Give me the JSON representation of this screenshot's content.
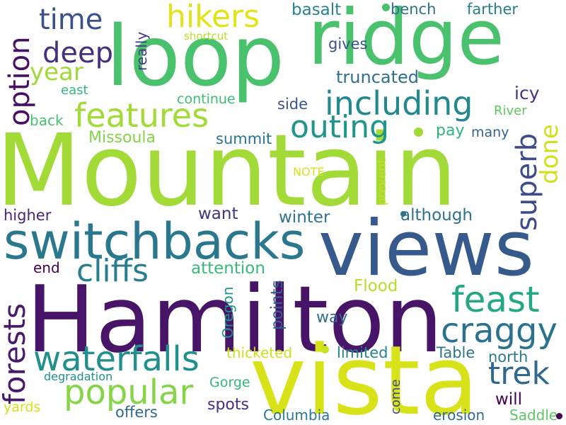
{
  "words": [
    {
      "text": "Mountain",
      "color": "#a2da37",
      "rot": 0
    },
    {
      "text": "Hamilton",
      "color": "#481467",
      "rot": 0
    },
    {
      "text": "vista",
      "color": "#d8e219",
      "rot": 0
    },
    {
      "text": "views",
      "color": "#375a8c",
      "rot": 0
    },
    {
      "text": "loop",
      "color": "#4ac16d",
      "rot": 0
    },
    {
      "text": "ridge",
      "color": "#4ac16d",
      "rot": 0
    },
    {
      "text": "switchbacks",
      "color": "#2a788e",
      "rot": 0
    },
    {
      "text": "hikers",
      "color": "#e2e418",
      "rot": 0
    },
    {
      "text": "features",
      "color": "#a2da37",
      "rot": 0
    },
    {
      "text": "including",
      "color": "#23898e",
      "rot": 0
    },
    {
      "text": "feast",
      "color": "#22a884",
      "rot": 0
    },
    {
      "text": "craggy",
      "color": "#2c728e",
      "rot": 0
    },
    {
      "text": "waterfalls",
      "color": "#21908d",
      "rot": 0
    },
    {
      "text": "forests",
      "color": "#481a6c",
      "rot": -90
    },
    {
      "text": "popular",
      "color": "#86d549",
      "rot": 0
    },
    {
      "text": "cliffs",
      "color": "#287d8e",
      "rot": 0
    },
    {
      "text": "outing",
      "color": "#1f958b",
      "rot": 0
    },
    {
      "text": "trek",
      "color": "#31688e",
      "rot": 0
    },
    {
      "text": "superb",
      "color": "#3e4c8a",
      "rot": -90
    },
    {
      "text": "time",
      "color": "#3b518b",
      "rot": 0
    },
    {
      "text": "deep",
      "color": "#46307e",
      "rot": 0
    },
    {
      "text": "year",
      "color": "#a0da39",
      "rot": 0
    },
    {
      "text": "option",
      "color": "#471063",
      "rot": -90
    },
    {
      "text": "done",
      "color": "#d0e11c",
      "rot": -90
    },
    {
      "text": "truncated",
      "color": "#2e6f8e",
      "rot": 0
    },
    {
      "text": "basalt",
      "color": "#25848e",
      "rot": 0
    },
    {
      "text": "bench",
      "color": "#2d718e",
      "rot": 0
    },
    {
      "text": "farther",
      "color": "#297b8e",
      "rot": 0
    },
    {
      "text": "gives",
      "color": "#3a538b",
      "rot": 0
    },
    {
      "text": "really",
      "color": "#443983",
      "rot": -90
    },
    {
      "text": "shortcut",
      "color": "#bade28",
      "rot": 0
    },
    {
      "text": "icy",
      "color": "#46327e",
      "rot": 0
    },
    {
      "text": "continue",
      "color": "#3dbc74",
      "rot": 0
    },
    {
      "text": "side",
      "color": "#3b528b",
      "rot": 0
    },
    {
      "text": "River",
      "color": "#5ec962",
      "rot": 0
    },
    {
      "text": "east",
      "color": "#32b67a",
      "rot": 0
    },
    {
      "text": "back",
      "color": "#46c06f",
      "rot": 0
    },
    {
      "text": "Missoula",
      "color": "#84d44b",
      "rot": 0
    },
    {
      "text": "summit",
      "color": "#2b748e",
      "rot": 0
    },
    {
      "text": "pay",
      "color": "#2fb47c",
      "rot": 0
    },
    {
      "text": "many",
      "color": "#33638d",
      "rot": 0
    },
    {
      "text": "NOTE",
      "color": "#d8e219",
      "rot": 0
    },
    {
      "text": "prevent",
      "color": "#c5e021",
      "rot": -90
    },
    {
      "text": "higher",
      "color": "#482576",
      "rot": 0
    },
    {
      "text": "want",
      "color": "#46337f",
      "rot": 0
    },
    {
      "text": "winter",
      "color": "#2c728e",
      "rot": 0
    },
    {
      "text": "although",
      "color": "#2d718e",
      "rot": 0
    },
    {
      "text": "end",
      "color": "#440154",
      "rot": 0
    },
    {
      "text": "attention",
      "color": "#38b977",
      "rot": 0
    },
    {
      "text": "Oregon",
      "color": "#20938c",
      "rot": -90
    },
    {
      "text": "points",
      "color": "#34608d",
      "rot": -90
    },
    {
      "text": "Flood",
      "color": "#b5de2b",
      "rot": 0
    },
    {
      "text": "way",
      "color": "#2f6b8e",
      "rot": 0
    },
    {
      "text": "thicketed",
      "color": "#cae11f",
      "rot": 0
    },
    {
      "text": "limited",
      "color": "#25838e",
      "rot": 0
    },
    {
      "text": "Table",
      "color": "#2a768e",
      "rot": 0
    },
    {
      "text": "north",
      "color": "#297a8e",
      "rot": 0
    },
    {
      "text": "degradation",
      "color": "#21918c",
      "rot": 0
    },
    {
      "text": "Gorge",
      "color": "#35b779",
      "rot": 0
    },
    {
      "text": "come",
      "color": "#3e4989",
      "rot": -90
    },
    {
      "text": "will",
      "color": "#440154",
      "rot": 0
    },
    {
      "text": "yards",
      "color": "#d5e21a",
      "rot": 0
    },
    {
      "text": "spots",
      "color": "#472d7b",
      "rot": 0
    },
    {
      "text": "offers",
      "color": "#31688e",
      "rot": 0
    },
    {
      "text": "Columbia",
      "color": "#2a788e",
      "rot": 0
    },
    {
      "text": "erosion",
      "color": "#31688e",
      "rot": 0
    },
    {
      "text": "Saddle",
      "color": "#5cc863",
      "rot": 0
    }
  ]
}
